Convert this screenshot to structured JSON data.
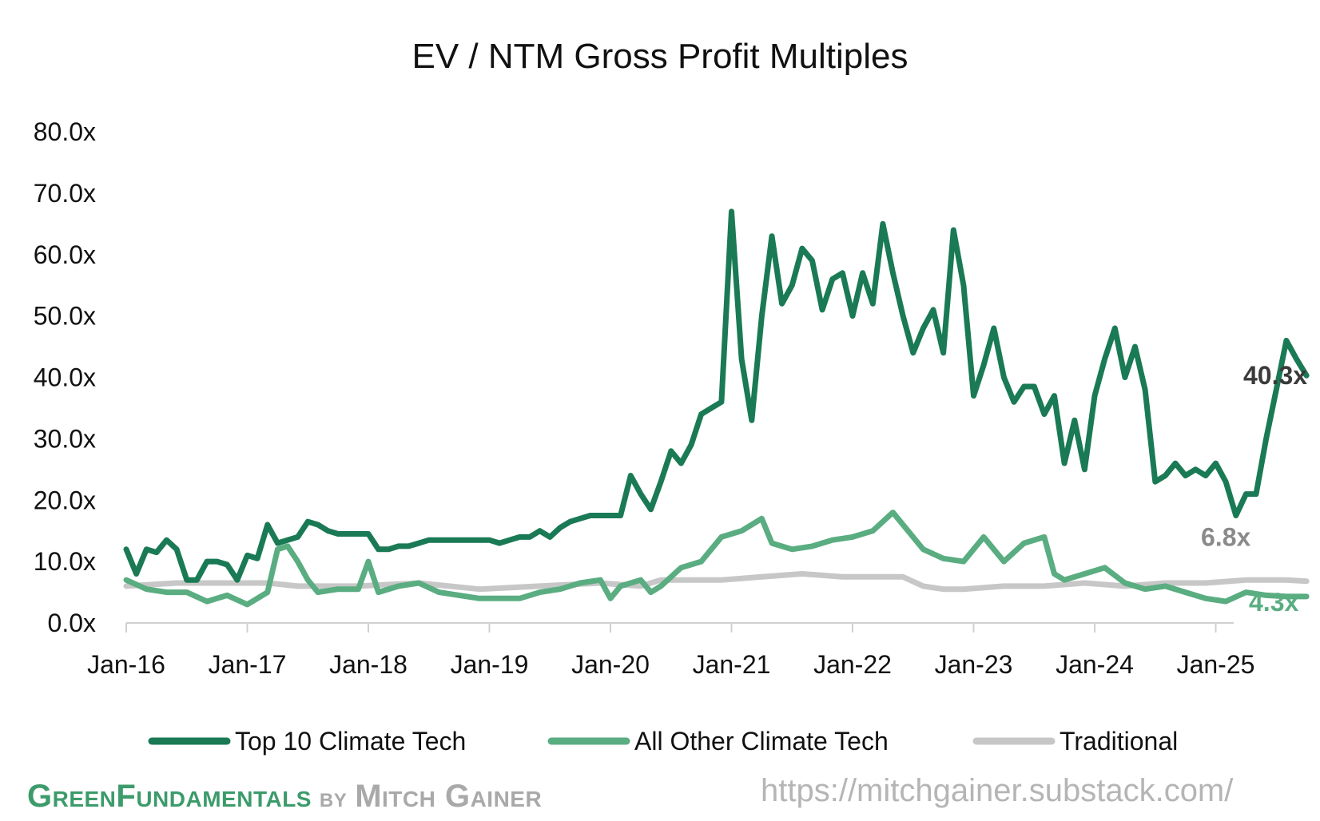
{
  "chart_data": {
    "type": "line",
    "title": "EV / NTM Gross Profit Multiples",
    "ylim": [
      0,
      80
    ],
    "y_ticks": [
      "0.0x",
      "10.0x",
      "20.0x",
      "30.0x",
      "40.0x",
      "50.0x",
      "60.0x",
      "70.0x",
      "80.0x"
    ],
    "x_ticks": [
      "Jan-16",
      "Jan-17",
      "Jan-18",
      "Jan-19",
      "Jan-20",
      "Jan-21",
      "Jan-22",
      "Jan-23",
      "Jan-24",
      "Jan-25"
    ],
    "x_range": [
      "Jan-16",
      "Feb-25"
    ],
    "grid": false,
    "legend_position": "bottom",
    "series": [
      {
        "name": "Top 10 Climate Tech",
        "color": "#1a7a55",
        "end_label": "40.3x",
        "points": [
          [
            "2016-01",
            12
          ],
          [
            "2016-02",
            8
          ],
          [
            "2016-03",
            12
          ],
          [
            "2016-04",
            11.5
          ],
          [
            "2016-05",
            13.5
          ],
          [
            "2016-06",
            12
          ],
          [
            "2016-07",
            7
          ],
          [
            "2016-08",
            7
          ],
          [
            "2016-09",
            10
          ],
          [
            "2016-10",
            10
          ],
          [
            "2016-11",
            9.5
          ],
          [
            "2016-12",
            7
          ],
          [
            "2017-01",
            11
          ],
          [
            "2017-02",
            10.5
          ],
          [
            "2017-03",
            16
          ],
          [
            "2017-04",
            13
          ],
          [
            "2017-05",
            13.5
          ],
          [
            "2017-06",
            14
          ],
          [
            "2017-07",
            16.5
          ],
          [
            "2017-08",
            16
          ],
          [
            "2017-09",
            15
          ],
          [
            "2017-10",
            14.5
          ],
          [
            "2017-11",
            14.5
          ],
          [
            "2017-12",
            14.5
          ],
          [
            "2018-01",
            14.5
          ],
          [
            "2018-02",
            12
          ],
          [
            "2018-03",
            12
          ],
          [
            "2018-04",
            12.5
          ],
          [
            "2018-05",
            12.5
          ],
          [
            "2018-06",
            13
          ],
          [
            "2018-07",
            13.5
          ],
          [
            "2018-08",
            13.5
          ],
          [
            "2018-09",
            13.5
          ],
          [
            "2018-10",
            13.5
          ],
          [
            "2018-11",
            13.5
          ],
          [
            "2018-12",
            13.5
          ],
          [
            "2019-01",
            13.5
          ],
          [
            "2019-02",
            13
          ],
          [
            "2019-03",
            13.5
          ],
          [
            "2019-04",
            14
          ],
          [
            "2019-05",
            14
          ],
          [
            "2019-06",
            15
          ],
          [
            "2019-07",
            14
          ],
          [
            "2019-08",
            15.5
          ],
          [
            "2019-09",
            16.5
          ],
          [
            "2019-10",
            17
          ],
          [
            "2019-11",
            17.5
          ],
          [
            "2019-12",
            17.5
          ],
          [
            "2020-01",
            17.5
          ],
          [
            "2020-02",
            17.5
          ],
          [
            "2020-03",
            24
          ],
          [
            "2020-04",
            21
          ],
          [
            "2020-05",
            18.5
          ],
          [
            "2020-06",
            23
          ],
          [
            "2020-07",
            28
          ],
          [
            "2020-08",
            26
          ],
          [
            "2020-09",
            29
          ],
          [
            "2020-10",
            34
          ],
          [
            "2020-11",
            35
          ],
          [
            "2020-12",
            36
          ],
          [
            "2021-01",
            67
          ],
          [
            "2021-02",
            43
          ],
          [
            "2021-03",
            33
          ],
          [
            "2021-04",
            50
          ],
          [
            "2021-05",
            63
          ],
          [
            "2021-06",
            52
          ],
          [
            "2021-07",
            55
          ],
          [
            "2021-08",
            61
          ],
          [
            "2021-09",
            59
          ],
          [
            "2021-10",
            51
          ],
          [
            "2021-11",
            56
          ],
          [
            "2021-12",
            57
          ],
          [
            "2022-01",
            50
          ],
          [
            "2022-02",
            57
          ],
          [
            "2022-03",
            52
          ],
          [
            "2022-04",
            65
          ],
          [
            "2022-05",
            57
          ],
          [
            "2022-06",
            50
          ],
          [
            "2022-07",
            44
          ],
          [
            "2022-08",
            48
          ],
          [
            "2022-09",
            51
          ],
          [
            "2022-10",
            44
          ],
          [
            "2022-11",
            64
          ],
          [
            "2022-12",
            55
          ],
          [
            "2023-01",
            37
          ],
          [
            "2023-02",
            42
          ],
          [
            "2023-03",
            48
          ],
          [
            "2023-04",
            40
          ],
          [
            "2023-05",
            36
          ],
          [
            "2023-06",
            38.5
          ],
          [
            "2023-07",
            38.5
          ],
          [
            "2023-08",
            34
          ],
          [
            "2023-09",
            37
          ],
          [
            "2023-10",
            26
          ],
          [
            "2023-11",
            33
          ],
          [
            "2023-12",
            25
          ],
          [
            "2024-01",
            37
          ],
          [
            "2024-02",
            43
          ],
          [
            "2024-03",
            48
          ],
          [
            "2024-04",
            40
          ],
          [
            "2024-05",
            45
          ],
          [
            "2024-06",
            38
          ],
          [
            "2024-07",
            23
          ],
          [
            "2024-08",
            24
          ],
          [
            "2024-09",
            26
          ],
          [
            "2024-10",
            24
          ],
          [
            "2024-11",
            25
          ],
          [
            "2024-12",
            24
          ],
          [
            "2025-01",
            26
          ],
          [
            "2025-02",
            23
          ],
          [
            "2025-03",
            17.5
          ],
          [
            "2025-04",
            21
          ],
          [
            "2025-05",
            21
          ],
          [
            "2025-06",
            30
          ],
          [
            "2025-07",
            38
          ],
          [
            "2025-08",
            46
          ],
          [
            "2025-09",
            43
          ],
          [
            "2025-10",
            40.3
          ]
        ]
      },
      {
        "name": "All Other Climate Tech",
        "color": "#5aad81",
        "end_label": "4.3x",
        "points": [
          [
            "2016-01",
            7
          ],
          [
            "2016-03",
            5.5
          ],
          [
            "2016-05",
            5
          ],
          [
            "2016-07",
            5
          ],
          [
            "2016-09",
            3.5
          ],
          [
            "2016-11",
            4.5
          ],
          [
            "2017-01",
            3
          ],
          [
            "2017-03",
            5
          ],
          [
            "2017-04",
            12
          ],
          [
            "2017-05",
            12.5
          ],
          [
            "2017-06",
            10
          ],
          [
            "2017-07",
            7
          ],
          [
            "2017-08",
            5
          ],
          [
            "2017-10",
            5.5
          ],
          [
            "2017-12",
            5.5
          ],
          [
            "2018-01",
            10
          ],
          [
            "2018-02",
            5
          ],
          [
            "2018-04",
            6
          ],
          [
            "2018-06",
            6.5
          ],
          [
            "2018-08",
            5
          ],
          [
            "2018-10",
            4.5
          ],
          [
            "2018-12",
            4
          ],
          [
            "2019-02",
            4
          ],
          [
            "2019-04",
            4
          ],
          [
            "2019-06",
            5
          ],
          [
            "2019-08",
            5.5
          ],
          [
            "2019-10",
            6.5
          ],
          [
            "2019-12",
            7
          ],
          [
            "2020-01",
            4
          ],
          [
            "2020-02",
            6
          ],
          [
            "2020-04",
            7
          ],
          [
            "2020-05",
            5
          ],
          [
            "2020-06",
            6
          ],
          [
            "2020-08",
            9
          ],
          [
            "2020-10",
            10
          ],
          [
            "2020-12",
            14
          ],
          [
            "2021-02",
            15
          ],
          [
            "2021-04",
            17
          ],
          [
            "2021-05",
            13
          ],
          [
            "2021-07",
            12
          ],
          [
            "2021-09",
            12.5
          ],
          [
            "2021-11",
            13.5
          ],
          [
            "2022-01",
            14
          ],
          [
            "2022-03",
            15
          ],
          [
            "2022-05",
            18
          ],
          [
            "2022-06",
            16
          ],
          [
            "2022-08",
            12
          ],
          [
            "2022-10",
            10.5
          ],
          [
            "2022-12",
            10
          ],
          [
            "2023-02",
            14
          ],
          [
            "2023-04",
            10
          ],
          [
            "2023-06",
            13
          ],
          [
            "2023-08",
            14
          ],
          [
            "2023-09",
            8
          ],
          [
            "2023-10",
            7
          ],
          [
            "2023-12",
            8
          ],
          [
            "2024-02",
            9
          ],
          [
            "2024-04",
            6.5
          ],
          [
            "2024-06",
            5.5
          ],
          [
            "2024-08",
            6
          ],
          [
            "2024-10",
            5
          ],
          [
            "2024-12",
            4
          ],
          [
            "2025-02",
            3.5
          ],
          [
            "2025-04",
            5
          ],
          [
            "2025-06",
            4.5
          ],
          [
            "2025-08",
            4.3
          ],
          [
            "2025-10",
            4.3
          ]
        ]
      },
      {
        "name": "Traditional",
        "color": "#c7c7c7",
        "end_label": "6.8x",
        "points": [
          [
            "2016-01",
            6
          ],
          [
            "2016-06",
            6.5
          ],
          [
            "2016-12",
            6.5
          ],
          [
            "2017-03",
            6.5
          ],
          [
            "2017-06",
            6
          ],
          [
            "2017-12",
            6
          ],
          [
            "2018-06",
            6.5
          ],
          [
            "2018-12",
            5.5
          ],
          [
            "2019-06",
            6
          ],
          [
            "2019-12",
            6.5
          ],
          [
            "2020-04",
            6
          ],
          [
            "2020-06",
            7
          ],
          [
            "2020-12",
            7
          ],
          [
            "2021-04",
            7.5
          ],
          [
            "2021-08",
            8
          ],
          [
            "2021-12",
            7.5
          ],
          [
            "2022-04",
            7.5
          ],
          [
            "2022-06",
            7.5
          ],
          [
            "2022-08",
            6
          ],
          [
            "2022-10",
            5.5
          ],
          [
            "2022-12",
            5.5
          ],
          [
            "2023-04",
            6
          ],
          [
            "2023-08",
            6
          ],
          [
            "2023-12",
            6.5
          ],
          [
            "2024-04",
            6
          ],
          [
            "2024-08",
            6.5
          ],
          [
            "2024-12",
            6.5
          ],
          [
            "2025-04",
            7
          ],
          [
            "2025-08",
            7
          ],
          [
            "2025-10",
            6.8
          ]
        ]
      }
    ]
  },
  "footer": {
    "brand_green": "GreenFundamentals",
    "brand_by": " by ",
    "brand_author": "Mitch Gainer",
    "url": "https://mitchgainer.substack.com/"
  }
}
